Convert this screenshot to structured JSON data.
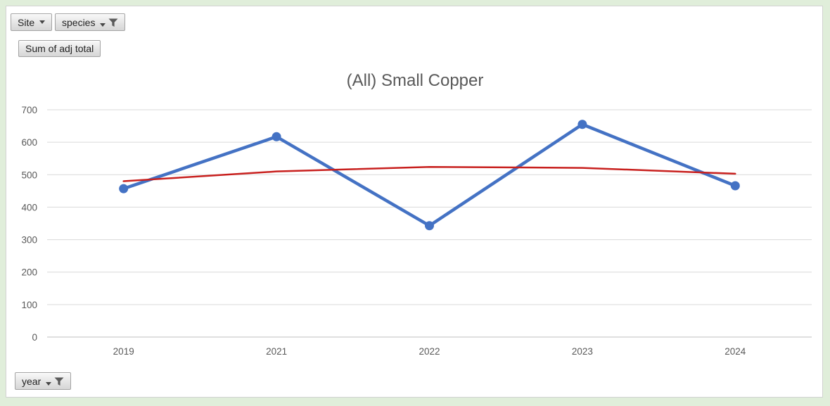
{
  "window": {
    "background_color": "#e0eeda",
    "chart_background": "#ffffff",
    "chart_border_color": "#d2d2d2"
  },
  "pivot_buttons": {
    "site": {
      "label": "Site",
      "has_dropdown": true,
      "has_filter": false
    },
    "species": {
      "label": "species",
      "has_dropdown": true,
      "has_filter": true
    },
    "value": {
      "label": "Sum of adj total",
      "has_dropdown": false,
      "has_filter": false
    },
    "year": {
      "label": "year",
      "has_dropdown": true,
      "has_filter": true
    }
  },
  "chart_data": {
    "type": "line",
    "title": "(All) Small Copper",
    "categories": [
      "2019",
      "2021",
      "2022",
      "2023",
      "2024"
    ],
    "series": [
      {
        "name": "Sum of adj total",
        "values": [
          457,
          617,
          343,
          655,
          466
        ],
        "color": "#4472C4",
        "marker": "circle"
      }
    ],
    "trendline": {
      "type": "polynomial",
      "order": 2,
      "values": [
        480,
        510,
        524,
        521,
        503
      ],
      "color": "#c8201e"
    },
    "xlabel": "",
    "ylabel": "",
    "ylim": [
      0,
      700
    ],
    "yticks": [
      0,
      100,
      200,
      300,
      400,
      500,
      600,
      700
    ],
    "grid": true,
    "legend": "none",
    "gridline_color": "#d9d9d9",
    "axis_color": "#bfbfbf",
    "label_color": "#595959",
    "title_color": "#595959"
  }
}
